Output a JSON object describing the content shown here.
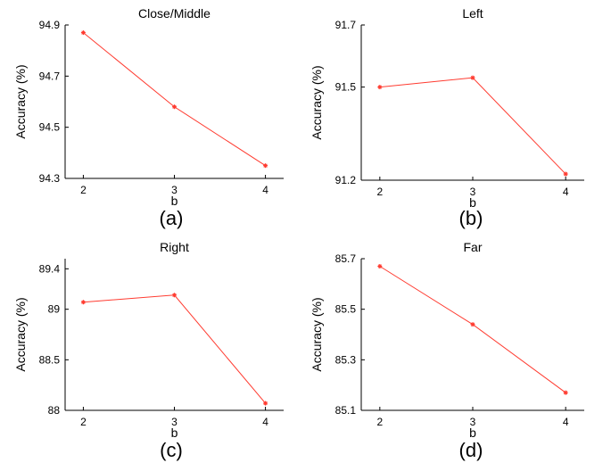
{
  "chart_data": [
    {
      "type": "line",
      "title": "Close/Middle",
      "xlabel": "b",
      "ylabel": "Accuracy (%)",
      "caption": "(a)",
      "x": [
        2,
        3,
        4
      ],
      "values": [
        94.87,
        94.58,
        94.35
      ],
      "xlim": [
        1.8,
        4.2
      ],
      "ylim": [
        94.3,
        94.9
      ],
      "xticks": [
        "2",
        "3",
        "4"
      ],
      "yticks": [
        94.3,
        94.5,
        94.7,
        94.9
      ],
      "ytick_labels": [
        "94.3",
        "94.5",
        "94.7",
        "94.9"
      ],
      "line_color": "#ff3b30",
      "grid": false
    },
    {
      "type": "line",
      "title": "Left",
      "xlabel": "b",
      "ylabel": "Accuracy (%)",
      "caption": "(b)",
      "x": [
        2,
        3,
        4
      ],
      "values": [
        91.5,
        91.53,
        91.22
      ],
      "xlim": [
        1.8,
        4.2
      ],
      "ylim": [
        91.2,
        91.7
      ],
      "xticks": [
        "2",
        "3",
        "4"
      ],
      "yticks": [
        91.2,
        91.5,
        91.7
      ],
      "ytick_labels": [
        "91.2",
        "91.5",
        "91.7"
      ],
      "line_color": "#ff3b30",
      "grid": false
    },
    {
      "type": "line",
      "title": "Right",
      "xlabel": "b",
      "ylabel": "Accuracy (%)",
      "caption": "(c)",
      "x": [
        2,
        3,
        4
      ],
      "values": [
        89.07,
        89.14,
        88.07
      ],
      "xlim": [
        1.8,
        4.2
      ],
      "ylim": [
        88.0,
        89.5
      ],
      "xticks": [
        "2",
        "3",
        "4"
      ],
      "yticks": [
        88.0,
        88.5,
        89.0,
        89.4
      ],
      "ytick_labels": [
        "88",
        "88.5",
        "89",
        "89.4"
      ],
      "line_color": "#ff3b30",
      "grid": false
    },
    {
      "type": "line",
      "title": "Far",
      "xlabel": "b",
      "ylabel": "Accuracy (%)",
      "caption": "(d)",
      "x": [
        2,
        3,
        4
      ],
      "values": [
        85.67,
        85.44,
        85.17
      ],
      "xlim": [
        1.8,
        4.2
      ],
      "ylim": [
        85.1,
        85.7
      ],
      "xticks": [
        "2",
        "3",
        "4"
      ],
      "yticks": [
        85.1,
        85.3,
        85.5,
        85.7
      ],
      "ytick_labels": [
        "85.1",
        "85.3",
        "85.5",
        "85.7"
      ],
      "line_color": "#ff3b30",
      "grid": false
    }
  ]
}
